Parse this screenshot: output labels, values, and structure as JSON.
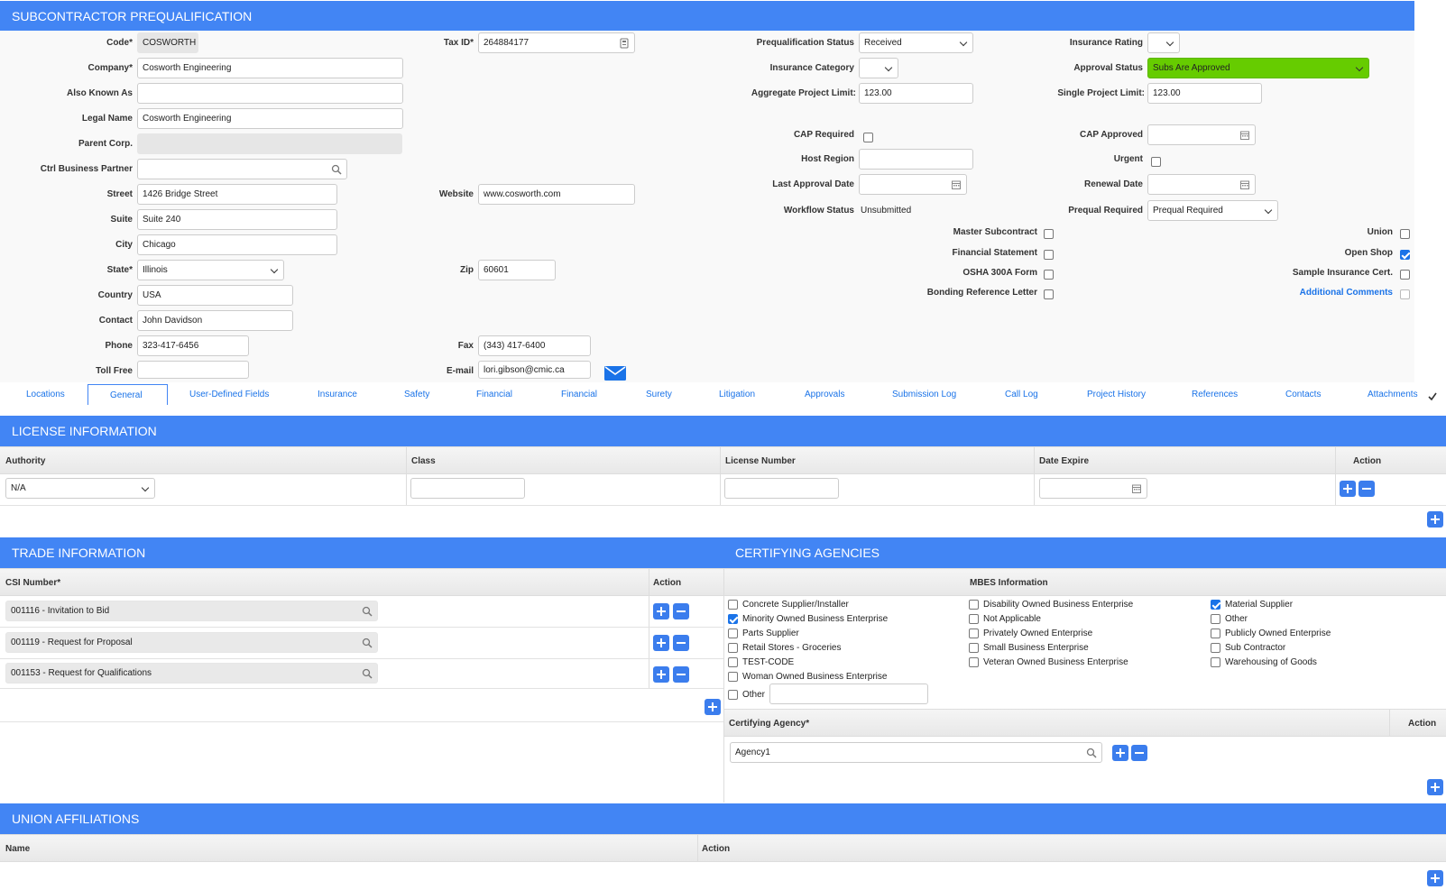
{
  "header": {
    "title": "SUBCONTRACTOR PREQUALIFICATION"
  },
  "left_fields": {
    "code_label": "Code*",
    "code_value": "COSWORTH",
    "company_label": "Company*",
    "company_value": "Cosworth Engineering",
    "aka_label": "Also Known As",
    "aka_value": "",
    "legal_label": "Legal Name",
    "legal_value": "Cosworth Engineering",
    "parent_label": "Parent Corp.",
    "parent_value": "",
    "ctrl_label": "Ctrl Business Partner",
    "ctrl_value": "",
    "street_label": "Street",
    "street_value": "1426 Bridge Street",
    "suite_label": "Suite",
    "suite_value": "Suite 240",
    "city_label": "City",
    "city_value": "Chicago",
    "state_label": "State*",
    "state_value": "Illinois",
    "country_label": "Country",
    "country_value": "USA",
    "contact_label": "Contact",
    "contact_value": "John Davidson",
    "phone_label": "Phone",
    "phone_value": "323-417-6456",
    "tollfree_label": "Toll Free",
    "tollfree_value": ""
  },
  "mid_fields": {
    "taxid_label": "Tax ID*",
    "taxid_value": "264884177",
    "website_label": "Website",
    "website_value": "www.cosworth.com",
    "zip_label": "Zip",
    "zip_value": "60601",
    "fax_label": "Fax",
    "fax_value": "(343) 417-6400",
    "email_label": "E-mail",
    "email_value": "lori.gibson@cmic.ca"
  },
  "right_fields": {
    "prequal_status_label": "Prequalification Status",
    "prequal_status_value": "Received",
    "ins_category_label": "Insurance Category",
    "ins_category_value": "",
    "agg_limit_label": "Aggregate Project Limit:",
    "agg_limit_value": "123.00",
    "cap_required_label": "CAP Required",
    "host_region_label": "Host Region",
    "host_region_value": "",
    "last_approval_label": "Last Approval Date",
    "last_approval_value": "",
    "workflow_label": "Workflow Status",
    "workflow_value": "Unsubmitted",
    "ins_rating_label": "Insurance Rating",
    "ins_rating_value": "",
    "approval_status_label": "Approval Status",
    "approval_status_value": "Subs Are Approved",
    "single_limit_label": "Single Project Limit:",
    "single_limit_value": "123.00",
    "cap_approved_label": "CAP Approved",
    "cap_approved_value": "",
    "urgent_label": "Urgent",
    "renewal_label": "Renewal Date",
    "renewal_value": "",
    "prequal_req_label": "Prequal Required",
    "prequal_req_value": "Prequal Required",
    "master_label": "Master Subcontract",
    "financial_label": "Financial Statement",
    "osha_label": "OSHA 300A Form",
    "bonding_label": "Bonding Reference Letter",
    "union_label": "Union",
    "openshop_label": "Open Shop",
    "sample_label": "Sample Insurance Cert.",
    "addl_label": "Additional Comments"
  },
  "tabs": [
    "Locations",
    "General",
    "User-Defined Fields",
    "Insurance",
    "Safety",
    "Financial",
    "Financial",
    "Surety",
    "Litigation",
    "Approvals",
    "Submission Log",
    "Call Log",
    "Project History",
    "References",
    "Contacts",
    "Attachments"
  ],
  "license": {
    "title": "LICENSE INFORMATION",
    "col_authority": "Authority",
    "col_class": "Class",
    "col_license": "License Number",
    "col_date": "Date Expire",
    "col_action": "Action",
    "authority_value": "N/A"
  },
  "trade": {
    "title": "TRADE INFORMATION",
    "col_csi": "CSI Number*",
    "col_action": "Action",
    "rows": [
      "001116 - Invitation to Bid",
      "001119 - Request for Proposal",
      "001153 - Request for Qualifications"
    ]
  },
  "certifying": {
    "title": "CERTIFYING AGENCIES",
    "mbes_header": "MBES Information",
    "col1": [
      "Concrete Supplier/Installer",
      "Minority Owned Business Enterprise",
      "Parts Supplier",
      "Retail Stores - Groceries",
      "TEST-CODE",
      "Woman Owned Business Enterprise"
    ],
    "col2": [
      "Disability Owned Business Enterprise",
      "Not Applicable",
      "Privately Owned Enterprise",
      "Small Business Enterprise",
      "Veteran Owned Business Enterprise"
    ],
    "col3": [
      "Material Supplier",
      "Other",
      "Publicly Owned Enterprise",
      "Sub Contractor",
      "Warehousing of Goods"
    ],
    "other_label": "Other",
    "agency_col": "Certifying Agency*",
    "action_col": "Action",
    "agency_value": "Agency1"
  },
  "union": {
    "title": "UNION AFFILIATIONS",
    "col_name": "Name",
    "col_action": "Action"
  },
  "colors": {
    "accent": "#4285f4",
    "approved": "#66cc00"
  }
}
